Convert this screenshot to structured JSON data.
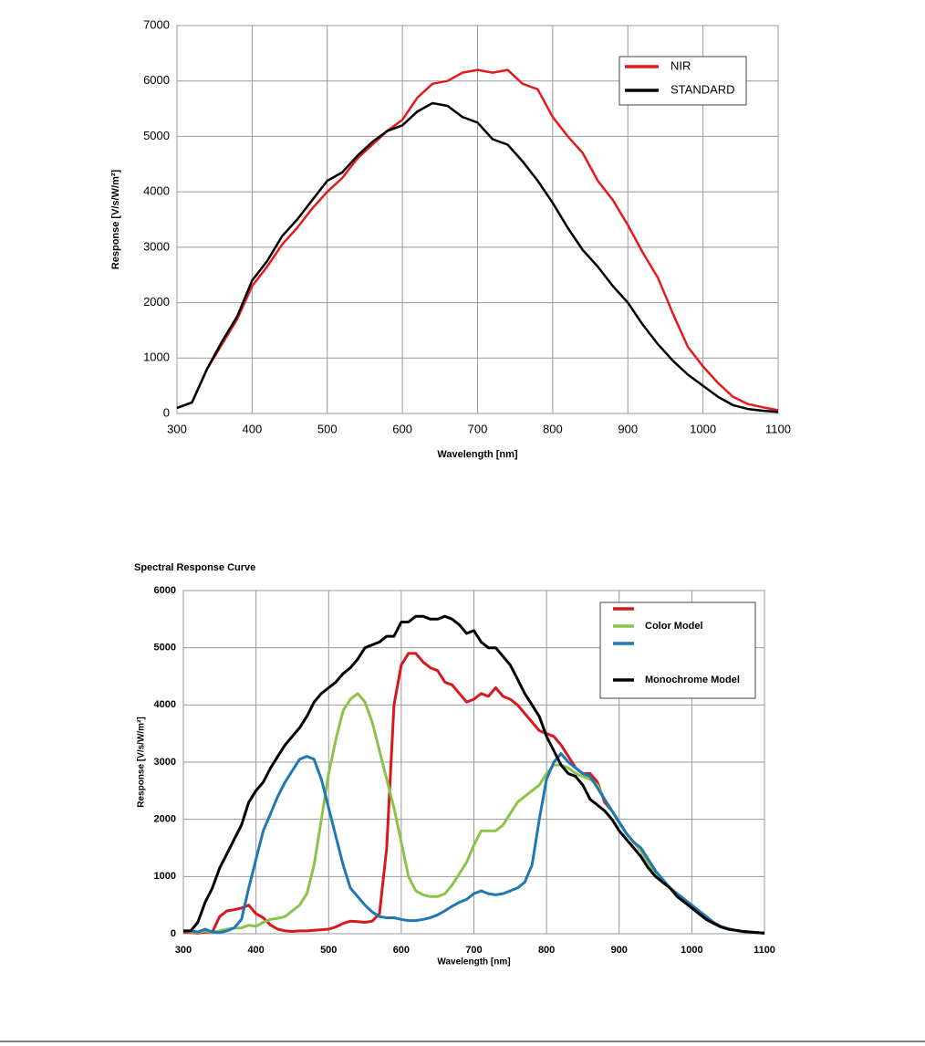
{
  "chart_data": [
    {
      "type": "line",
      "x_label": "Wavelength [nm]",
      "y_label": "Response [V/s/W/m²]",
      "x": [
        300,
        320,
        340,
        360,
        380,
        400,
        420,
        440,
        460,
        480,
        500,
        520,
        540,
        560,
        580,
        600,
        620,
        640,
        660,
        680,
        700,
        720,
        740,
        760,
        780,
        800,
        820,
        840,
        860,
        880,
        900,
        920,
        940,
        960,
        980,
        1000,
        1020,
        1040,
        1060,
        1080,
        1100
      ],
      "series": [
        {
          "name": "NIR",
          "color": "#e41a1c",
          "values": [
            100,
            200,
            800,
            1250,
            1700,
            2300,
            2650,
            3050,
            3350,
            3700,
            4000,
            4250,
            4600,
            4850,
            5100,
            5300,
            5700,
            5950,
            6000,
            6150,
            6200,
            6150,
            6200,
            5950,
            5850,
            5350,
            5000,
            4700,
            4200,
            3850,
            3400,
            2900,
            2450,
            1800,
            1200,
            850,
            550,
            300,
            170,
            110,
            60
          ]
        },
        {
          "name": "STANDARD",
          "color": "#000000",
          "values": [
            100,
            200,
            800,
            1300,
            1750,
            2400,
            2750,
            3200,
            3500,
            3850,
            4200,
            4350,
            4650,
            4900,
            5100,
            5200,
            5450,
            5600,
            5550,
            5350,
            5250,
            4950,
            4850,
            4550,
            4200,
            3800,
            3350,
            2950,
            2650,
            2300,
            2000,
            1600,
            1250,
            950,
            700,
            500,
            300,
            150,
            80,
            50,
            30
          ]
        }
      ],
      "xlim": [
        300,
        1100
      ],
      "xticks": [
        300,
        400,
        500,
        600,
        700,
        800,
        900,
        1000,
        1100
      ],
      "ylim": [
        0,
        7000
      ],
      "yticks": [
        0,
        1000,
        2000,
        3000,
        4000,
        5000,
        6000,
        7000
      ],
      "grid": true,
      "legend": "upper right"
    },
    {
      "type": "line",
      "title": "Spectral Response Curve",
      "x_label": "Wavelength [nm]",
      "y_label": "Response [V/s/W/m²]",
      "x": [
        300,
        310,
        320,
        330,
        340,
        350,
        360,
        370,
        380,
        390,
        400,
        410,
        420,
        430,
        440,
        450,
        460,
        470,
        480,
        490,
        500,
        510,
        520,
        530,
        540,
        550,
        560,
        570,
        580,
        590,
        600,
        610,
        620,
        630,
        640,
        650,
        660,
        670,
        680,
        690,
        700,
        710,
        720,
        730,
        740,
        750,
        760,
        770,
        780,
        790,
        800,
        810,
        820,
        830,
        840,
        850,
        860,
        870,
        880,
        890,
        900,
        910,
        920,
        930,
        940,
        950,
        960,
        970,
        980,
        990,
        1000,
        1010,
        1020,
        1030,
        1040,
        1050,
        1060,
        1070,
        1080,
        1090,
        1100
      ],
      "series": [
        {
          "color": "#d7191c",
          "values": [
            30,
            20,
            10,
            30,
            30,
            300,
            400,
            420,
            450,
            500,
            350,
            280,
            150,
            80,
            50,
            40,
            50,
            50,
            60,
            70,
            80,
            120,
            180,
            220,
            210,
            200,
            220,
            350,
            1500,
            4000,
            4700,
            4900,
            4900,
            4750,
            4650,
            4600,
            4400,
            4350,
            4200,
            4050,
            4100,
            4200,
            4150,
            4300,
            4150,
            4100,
            4000,
            3850,
            3700,
            3550,
            3500,
            3450,
            3300,
            3100,
            2900,
            2800,
            2800,
            2650,
            2300,
            2150,
            1950,
            1750,
            1600,
            1450,
            1250,
            1050,
            900,
            800,
            650,
            550,
            450,
            350,
            250,
            180,
            120,
            80,
            60,
            40,
            30,
            20,
            10
          ]
        },
        {
          "name": "Color Model",
          "color": "#8bc34a",
          "values": [
            50,
            30,
            20,
            50,
            20,
            50,
            80,
            100,
            100,
            150,
            130,
            200,
            250,
            270,
            300,
            400,
            500,
            700,
            1200,
            2000,
            2800,
            3400,
            3900,
            4100,
            4200,
            4050,
            3700,
            3200,
            2700,
            2200,
            1600,
            1000,
            750,
            680,
            650,
            650,
            700,
            850,
            1050,
            1250,
            1550,
            1800,
            1800,
            1800,
            1900,
            2100,
            2300,
            2400,
            2500,
            2600,
            2800,
            2950,
            2950,
            2900,
            2800,
            2750,
            2700,
            2600,
            2350,
            2150,
            1950,
            1750,
            1600,
            1450,
            1250,
            1050,
            900,
            800,
            650,
            550,
            450,
            350,
            250,
            180,
            120,
            80,
            60,
            40,
            30,
            20,
            10
          ]
        },
        {
          "color": "#1f78b4",
          "values": [
            50,
            50,
            30,
            80,
            30,
            20,
            50,
            100,
            250,
            800,
            1300,
            1800,
            2100,
            2400,
            2650,
            2850,
            3050,
            3100,
            3050,
            2700,
            2200,
            1700,
            1200,
            800,
            650,
            500,
            380,
            300,
            280,
            280,
            250,
            230,
            230,
            250,
            280,
            330,
            400,
            480,
            550,
            600,
            700,
            750,
            700,
            680,
            700,
            750,
            800,
            900,
            1200,
            2000,
            2700,
            3000,
            3150,
            3000,
            2900,
            2800,
            2750,
            2550,
            2350,
            2150,
            1950,
            1750,
            1600,
            1500,
            1300,
            1100,
            950,
            800,
            700,
            600,
            500,
            400,
            300,
            200,
            130,
            90,
            60,
            40,
            30,
            20,
            10
          ]
        },
        {
          "name": "Monochrome Model",
          "color": "#000000",
          "values": [
            50,
            50,
            200,
            550,
            800,
            1150,
            1400,
            1650,
            1900,
            2300,
            2500,
            2650,
            2900,
            3100,
            3300,
            3450,
            3600,
            3800,
            4050,
            4200,
            4300,
            4400,
            4550,
            4650,
            4800,
            5000,
            5050,
            5100,
            5200,
            5200,
            5450,
            5450,
            5550,
            5550,
            5500,
            5500,
            5550,
            5500,
            5400,
            5250,
            5300,
            5100,
            5000,
            5000,
            4850,
            4700,
            4450,
            4200,
            4000,
            3800,
            3450,
            3200,
            2950,
            2800,
            2750,
            2600,
            2350,
            2250,
            2150,
            2000,
            1800,
            1650,
            1500,
            1350,
            1150,
            1000,
            900,
            800,
            650,
            550,
            450,
            350,
            250,
            180,
            120,
            80,
            60,
            40,
            30,
            20,
            10
          ]
        }
      ],
      "xlim": [
        300,
        1100
      ],
      "xticks": [
        300,
        400,
        500,
        600,
        700,
        800,
        900,
        1000,
        1100
      ],
      "ylim": [
        0,
        6000
      ],
      "yticks": [
        0,
        1000,
        2000,
        3000,
        4000,
        5000,
        6000
      ],
      "grid": true,
      "legend": "upper right"
    }
  ]
}
